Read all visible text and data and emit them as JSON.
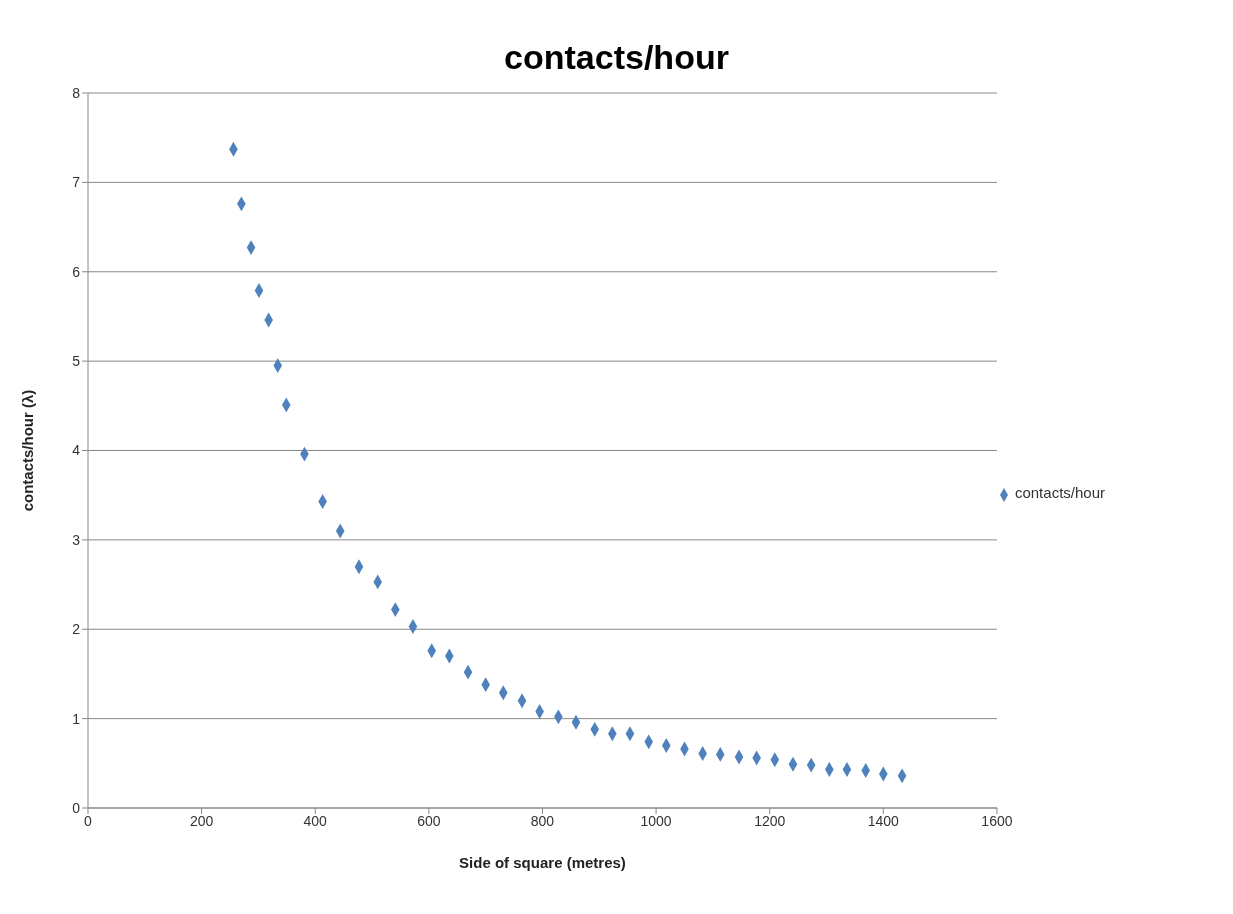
{
  "chart_data": {
    "type": "scatter",
    "title": "contacts/hour",
    "xlabel": "Side of square (metres)",
    "ylabel": "contacts/hour (λ)",
    "xlim": [
      0,
      1600
    ],
    "xticks": [
      0,
      200,
      400,
      600,
      800,
      1000,
      1200,
      1400,
      1600
    ],
    "ylim": [
      0,
      8
    ],
    "yticks": [
      0,
      1,
      2,
      3,
      4,
      5,
      6,
      7,
      8
    ],
    "grid": "y",
    "legend": "right",
    "marker": "diamond",
    "series": [
      {
        "name": "contacts/hour",
        "color": "#4f81bd",
        "x": [
          256,
          270,
          287,
          301,
          318,
          334,
          349,
          381,
          413,
          444,
          477,
          510,
          541,
          572,
          605,
          636,
          669,
          700,
          731,
          764,
          795,
          828,
          859,
          892,
          923,
          954,
          987,
          1018,
          1050,
          1082,
          1113,
          1146,
          1177,
          1209,
          1241,
          1273,
          1305,
          1336,
          1369,
          1400,
          1433
        ],
        "values": [
          7.37,
          6.76,
          6.27,
          5.79,
          5.46,
          4.95,
          4.51,
          3.96,
          3.43,
          3.1,
          2.7,
          2.53,
          2.22,
          2.03,
          1.76,
          1.7,
          1.52,
          1.38,
          1.29,
          1.2,
          1.08,
          1.02,
          0.96,
          0.88,
          0.83,
          0.83,
          0.74,
          0.7,
          0.66,
          0.61,
          0.6,
          0.57,
          0.56,
          0.54,
          0.49,
          0.48,
          0.43,
          0.43,
          0.42,
          0.38,
          0.36
        ]
      }
    ]
  }
}
